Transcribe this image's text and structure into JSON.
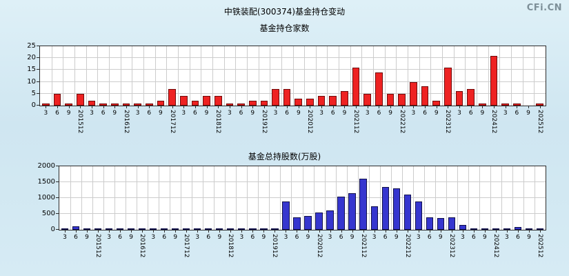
{
  "page": {
    "title": "中铁装配(300374)基金持仓变动",
    "watermark": "CFi.CN"
  },
  "chart_data": [
    {
      "type": "bar",
      "title": "基金持仓家数",
      "categories": [
        "3",
        "6",
        "9",
        "201512",
        "3",
        "6",
        "9",
        "201612",
        "3",
        "6",
        "9",
        "201712",
        "3",
        "6",
        "9",
        "201812",
        "3",
        "6",
        "9",
        "201912",
        "3",
        "6",
        "9",
        "202012",
        "3",
        "6",
        "9",
        "202112",
        "3",
        "6",
        "9",
        "202212",
        "3",
        "6",
        "9",
        "202312",
        "3",
        "6",
        "9",
        "202412",
        "3",
        "6",
        "9",
        "202512"
      ],
      "values": [
        1,
        5,
        1,
        5,
        2,
        1,
        1,
        1,
        1,
        1,
        2,
        7,
        4,
        2,
        4,
        4,
        1,
        1,
        2,
        2,
        7,
        7,
        3,
        3,
        4,
        4,
        6,
        16,
        5,
        14,
        5,
        5,
        10,
        8,
        2,
        16,
        6,
        7,
        1,
        21,
        1,
        1,
        0,
        1
      ],
      "xlabel": "",
      "ylabel": "",
      "ylim": [
        0,
        25
      ],
      "yticks": [
        0,
        5,
        10,
        15,
        20,
        25
      ],
      "grid": true,
      "legend": "none",
      "bar_color": "#ee2222",
      "bar_border": "#6e0b0b"
    },
    {
      "type": "bar",
      "title": "基金总持股数(万股)",
      "categories": [
        "3",
        "6",
        "9",
        "201512",
        "3",
        "6",
        "9",
        "201612",
        "3",
        "6",
        "9",
        "201712",
        "3",
        "6",
        "9",
        "201812",
        "3",
        "6",
        "9",
        "201912",
        "3",
        "6",
        "9",
        "202012",
        "3",
        "6",
        "9",
        "202112",
        "3",
        "6",
        "9",
        "202212",
        "3",
        "6",
        "9",
        "202312",
        "3",
        "6",
        "9",
        "202412",
        "3",
        "6",
        "9",
        "202512"
      ],
      "values": [
        10,
        100,
        50,
        30,
        20,
        10,
        5,
        5,
        10,
        5,
        20,
        30,
        20,
        10,
        20,
        20,
        5,
        5,
        5,
        10,
        900,
        400,
        430,
        550,
        600,
        1050,
        1150,
        1600,
        750,
        1350,
        1300,
        1100,
        900,
        400,
        380,
        400,
        150,
        30,
        20,
        20,
        30,
        80,
        30,
        20
      ],
      "xlabel": "",
      "ylabel": "",
      "ylim": [
        0,
        2000
      ],
      "yticks": [
        0,
        500,
        1000,
        1500,
        2000
      ],
      "grid": true,
      "legend": "none",
      "bar_color": "#3636cf",
      "bar_border": "#10104a"
    }
  ]
}
